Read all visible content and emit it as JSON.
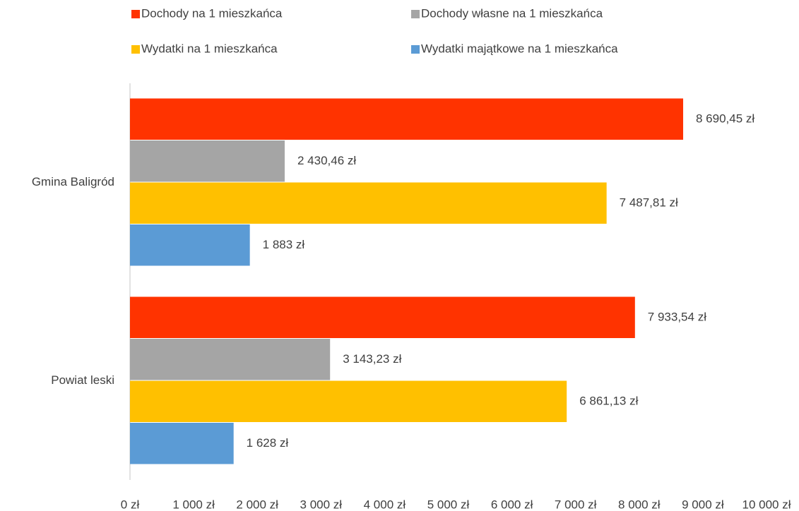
{
  "chart_data": {
    "type": "hbar",
    "categories": [
      "Gmina Baligród",
      "Powiat leski"
    ],
    "series": [
      {
        "name": "Dochody na 1 mieszkańca",
        "color": "#ff3300",
        "values": [
          8690.45,
          7933.54
        ],
        "value_labels": [
          "8 690,45 zł",
          "7 933,54 zł"
        ]
      },
      {
        "name": "Dochody własne na 1 mieszkańca",
        "color": "#a5a5a5",
        "values": [
          2430.46,
          3143.23
        ],
        "value_labels": [
          "2 430,46 zł",
          "3 143,23 zł"
        ]
      },
      {
        "name": "Wydatki na 1 mieszkańca",
        "color": "#ffc000",
        "values": [
          7487.81,
          6861.13
        ],
        "value_labels": [
          "7 487,81 zł",
          "6 861,13 zł"
        ]
      },
      {
        "name": "Wydatki majątkowe na 1 mieszkańca",
        "color": "#5b9bd5",
        "values": [
          1883,
          1628
        ],
        "value_labels": [
          "1 883 zł",
          "1 628 zł"
        ]
      }
    ],
    "xlim": [
      0,
      10000
    ],
    "xticks": [
      {
        "value": 0,
        "label": "0 zł"
      },
      {
        "value": 1000,
        "label": "1 000 zł"
      },
      {
        "value": 2000,
        "label": "2 000 zł"
      },
      {
        "value": 3000,
        "label": "3 000 zł"
      },
      {
        "value": 4000,
        "label": "4 000 zł"
      },
      {
        "value": 5000,
        "label": "5 000 zł"
      },
      {
        "value": 6000,
        "label": "6 000 zł"
      },
      {
        "value": 7000,
        "label": "7 000 zł"
      },
      {
        "value": 8000,
        "label": "8 000 zł"
      },
      {
        "value": 9000,
        "label": "9 000 zł"
      },
      {
        "value": 10000,
        "label": "10 000 zł"
      }
    ],
    "legend": "top",
    "grid": false
  }
}
